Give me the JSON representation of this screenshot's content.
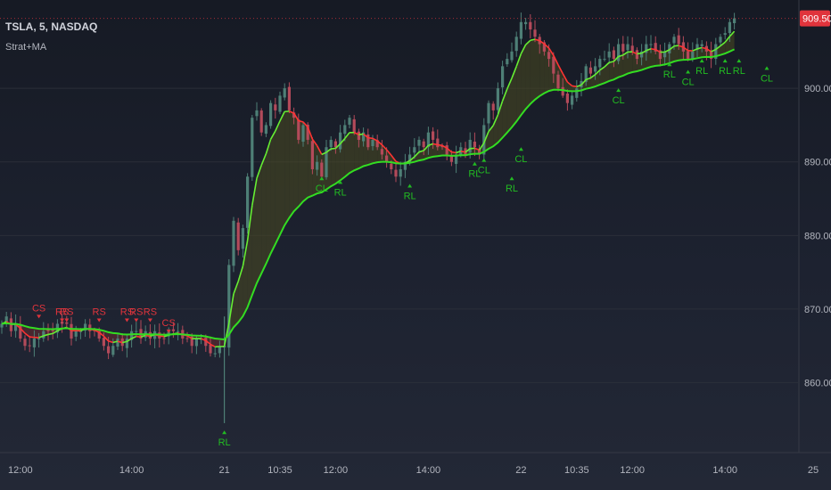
{
  "header": {
    "symbol": "TSLA, 5, NASDAQ",
    "indicator": "Strat+MA"
  },
  "chart_data": {
    "type": "line",
    "ylim": [
      850.5,
      912
    ],
    "y_ticks": [
      {
        "value": 900,
        "label": "900.00"
      },
      {
        "value": 890,
        "label": "890.00"
      },
      {
        "value": 880,
        "label": "880.00"
      },
      {
        "value": 870,
        "label": "870.00"
      },
      {
        "value": 860,
        "label": "860.00"
      }
    ],
    "x_ticks": [
      {
        "x": 4,
        "label": "12:00"
      },
      {
        "x": 28,
        "label": "14:00"
      },
      {
        "x": 48,
        "label": "21"
      },
      {
        "x": 60,
        "label": "10:35"
      },
      {
        "x": 72,
        "label": "12:00"
      },
      {
        "x": 92,
        "label": "14:00"
      },
      {
        "x": 112,
        "label": "22"
      },
      {
        "x": 124,
        "label": "10:35"
      },
      {
        "x": 136,
        "label": "12:00"
      },
      {
        "x": 156,
        "label": "14:00"
      },
      {
        "x": 175,
        "label": "25"
      }
    ],
    "last_price": {
      "value": 909.5,
      "label": "909.50"
    },
    "colors": {
      "up": "#4e7f76",
      "down": "#b34a5a",
      "ma_fast_below": "#ff3333",
      "ma_fast_above": "#66ee33",
      "ma_slow": "#33dd22",
      "fill_bull": "#4a4a20",
      "fill_bear": "#6a2a30",
      "signal_red": "#e0343c",
      "signal_green": "#22bb22",
      "last_price_bg": "#e0343c"
    },
    "series": [
      {
        "values": [
          [
            868.0,
            869.0,
            867.0,
            868.0,
            866.0,
            865.0,
            865.0,
            866.0,
            866.0,
            867.0,
            867.0,
            867.0,
            868.0,
            868.0,
            868.0,
            866.0,
            867.0,
            867.0,
            868.0,
            867.0,
            867.0,
            866.0,
            865.0,
            864.0,
            865.0,
            866.0,
            865.0,
            866.0,
            867.0,
            867.0,
            866.0,
            867.0,
            866.0,
            867.0,
            866.0,
            866.0,
            867.0,
            867.0,
            867.0,
            866.0,
            866.0,
            865.0,
            866.0,
            866.0,
            865.0,
            864.0,
            864.0,
            865.0,
            865.0,
            876.0,
            882.0,
            878.0,
            881.0,
            888.0,
            896.0,
            897.0,
            894.0,
            895.0,
            898.0,
            897.0,
            899.0,
            900.0,
            897.0,
            896.0,
            893.0,
            895.0,
            893.0,
            889.0,
            890.0,
            888.0,
            892.0,
            893.0,
            892.0,
            894.0,
            895.0,
            896.0,
            894.0,
            893.0,
            894.0,
            892.0,
            893.0,
            892.0,
            891.0,
            890.0,
            889.0,
            888.0,
            889.0,
            890.0,
            891.0,
            892.0,
            893.0,
            892.0,
            894.0,
            893.0,
            892.0,
            892.0,
            891.0,
            890.0,
            891.0,
            892.0,
            891.0,
            893.0,
            892.0,
            891.0,
            895.0,
            898.0,
            897.0,
            900.0,
            903.0,
            904.0,
            905.0,
            907.0,
            909.0,
            909.0,
            908.0,
            907.0,
            906.0,
            905.0,
            904.0,
            902.0,
            900.0,
            899.0,
            898.0,
            899.0,
            900.0,
            901.0,
            903.0,
            902.0,
            903.0,
            904.0,
            904.0,
            905.0,
            904.0,
            906.0,
            905.0,
            906.0,
            905.0,
            904.0,
            905.0,
            906.0,
            906.0,
            905.0,
            904.0,
            905.0,
            906.0,
            907.0,
            906.0,
            905.0,
            904.0,
            905.0,
            906.0,
            906.0,
            905.0,
            904.0,
            906.0,
            907.0,
            907.5,
            909.0,
            909.5
          ]
        ]
      }
    ]
  },
  "signals": [
    {
      "text": "CS",
      "x": 8,
      "y": 868.5,
      "color": "red",
      "arrow": "down"
    },
    {
      "text": "RS",
      "x": 13,
      "y": 868.0,
      "color": "red",
      "arrow": "down"
    },
    {
      "text": "RS",
      "x": 14,
      "y": 868.0,
      "color": "red",
      "arrow": "down"
    },
    {
      "text": "RS",
      "x": 21,
      "y": 868.0,
      "color": "red",
      "arrow": "down"
    },
    {
      "text": "RS",
      "x": 27,
      "y": 868.0,
      "color": "red",
      "arrow": "down"
    },
    {
      "text": "RS",
      "x": 29,
      "y": 868.0,
      "color": "red",
      "arrow": "down"
    },
    {
      "text": "RS",
      "x": 32,
      "y": 868.0,
      "color": "red",
      "arrow": "down"
    },
    {
      "text": "CS",
      "x": 36,
      "y": 866.5,
      "color": "red",
      "arrow": "down"
    },
    {
      "text": "RL",
      "x": 48,
      "y": 853.5,
      "color": "green",
      "arrow": "up"
    },
    {
      "text": "CL",
      "x": 69,
      "y": 888.0,
      "color": "green",
      "arrow": "up"
    },
    {
      "text": "RL",
      "x": 73,
      "y": 887.5,
      "color": "green",
      "arrow": "up"
    },
    {
      "text": "RL",
      "x": 88,
      "y": 887.0,
      "color": "green",
      "arrow": "up"
    },
    {
      "text": "RL",
      "x": 102,
      "y": 890.0,
      "color": "green",
      "arrow": "up"
    },
    {
      "text": "CL",
      "x": 104,
      "y": 890.5,
      "color": "green",
      "arrow": "up"
    },
    {
      "text": "RL",
      "x": 110,
      "y": 888.0,
      "color": "green",
      "arrow": "up"
    },
    {
      "text": "CL",
      "x": 112,
      "y": 892.0,
      "color": "green",
      "arrow": "up"
    },
    {
      "text": "CL",
      "x": 133,
      "y": 900.0,
      "color": "green",
      "arrow": "up"
    },
    {
      "text": "RL",
      "x": 144,
      "y": 903.5,
      "color": "green",
      "arrow": "up"
    },
    {
      "text": "CL",
      "x": 148,
      "y": 902.5,
      "color": "green",
      "arrow": "up"
    },
    {
      "text": "RL",
      "x": 151,
      "y": 904.0,
      "color": "green",
      "arrow": "up"
    },
    {
      "text": "RL",
      "x": 156,
      "y": 904.0,
      "color": "green",
      "arrow": "up"
    },
    {
      "text": "RL",
      "x": 159,
      "y": 904.0,
      "color": "green",
      "arrow": "up"
    },
    {
      "text": "CL",
      "x": 165,
      "y": 903.0,
      "color": "green",
      "arrow": "up"
    }
  ]
}
